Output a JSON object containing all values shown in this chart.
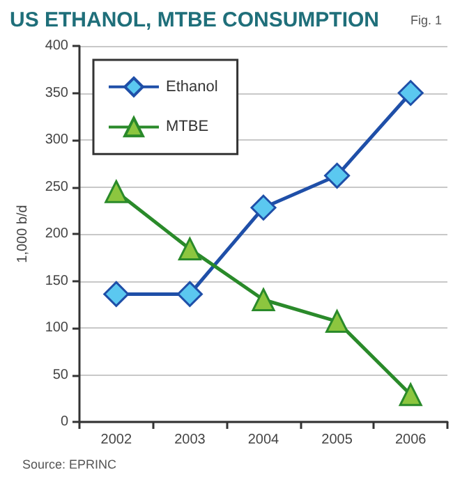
{
  "chart_data": {
    "type": "line",
    "title": "US ETHANOL, MTBE CONSUMPTION",
    "ylabel": "1,000 b/d",
    "annotations": [
      "Fig. 1",
      "Source: EPRINC"
    ],
    "categories": [
      "2002",
      "2003",
      "2004",
      "2005",
      "2006"
    ],
    "series": [
      {
        "name": "Ethanol",
        "color": "#1f4fa8",
        "marker": "diamond",
        "values": [
          136,
          136,
          228,
          262,
          350
        ]
      },
      {
        "name": "MTBE",
        "color": "#2a8a2a",
        "marker": "triangle",
        "values": [
          245,
          184,
          130,
          107,
          29
        ]
      }
    ],
    "ylim": [
      0,
      400
    ],
    "yticks": [
      0,
      50,
      100,
      150,
      200,
      250,
      300,
      350,
      400
    ],
    "grid": "y",
    "legend": "top left"
  }
}
